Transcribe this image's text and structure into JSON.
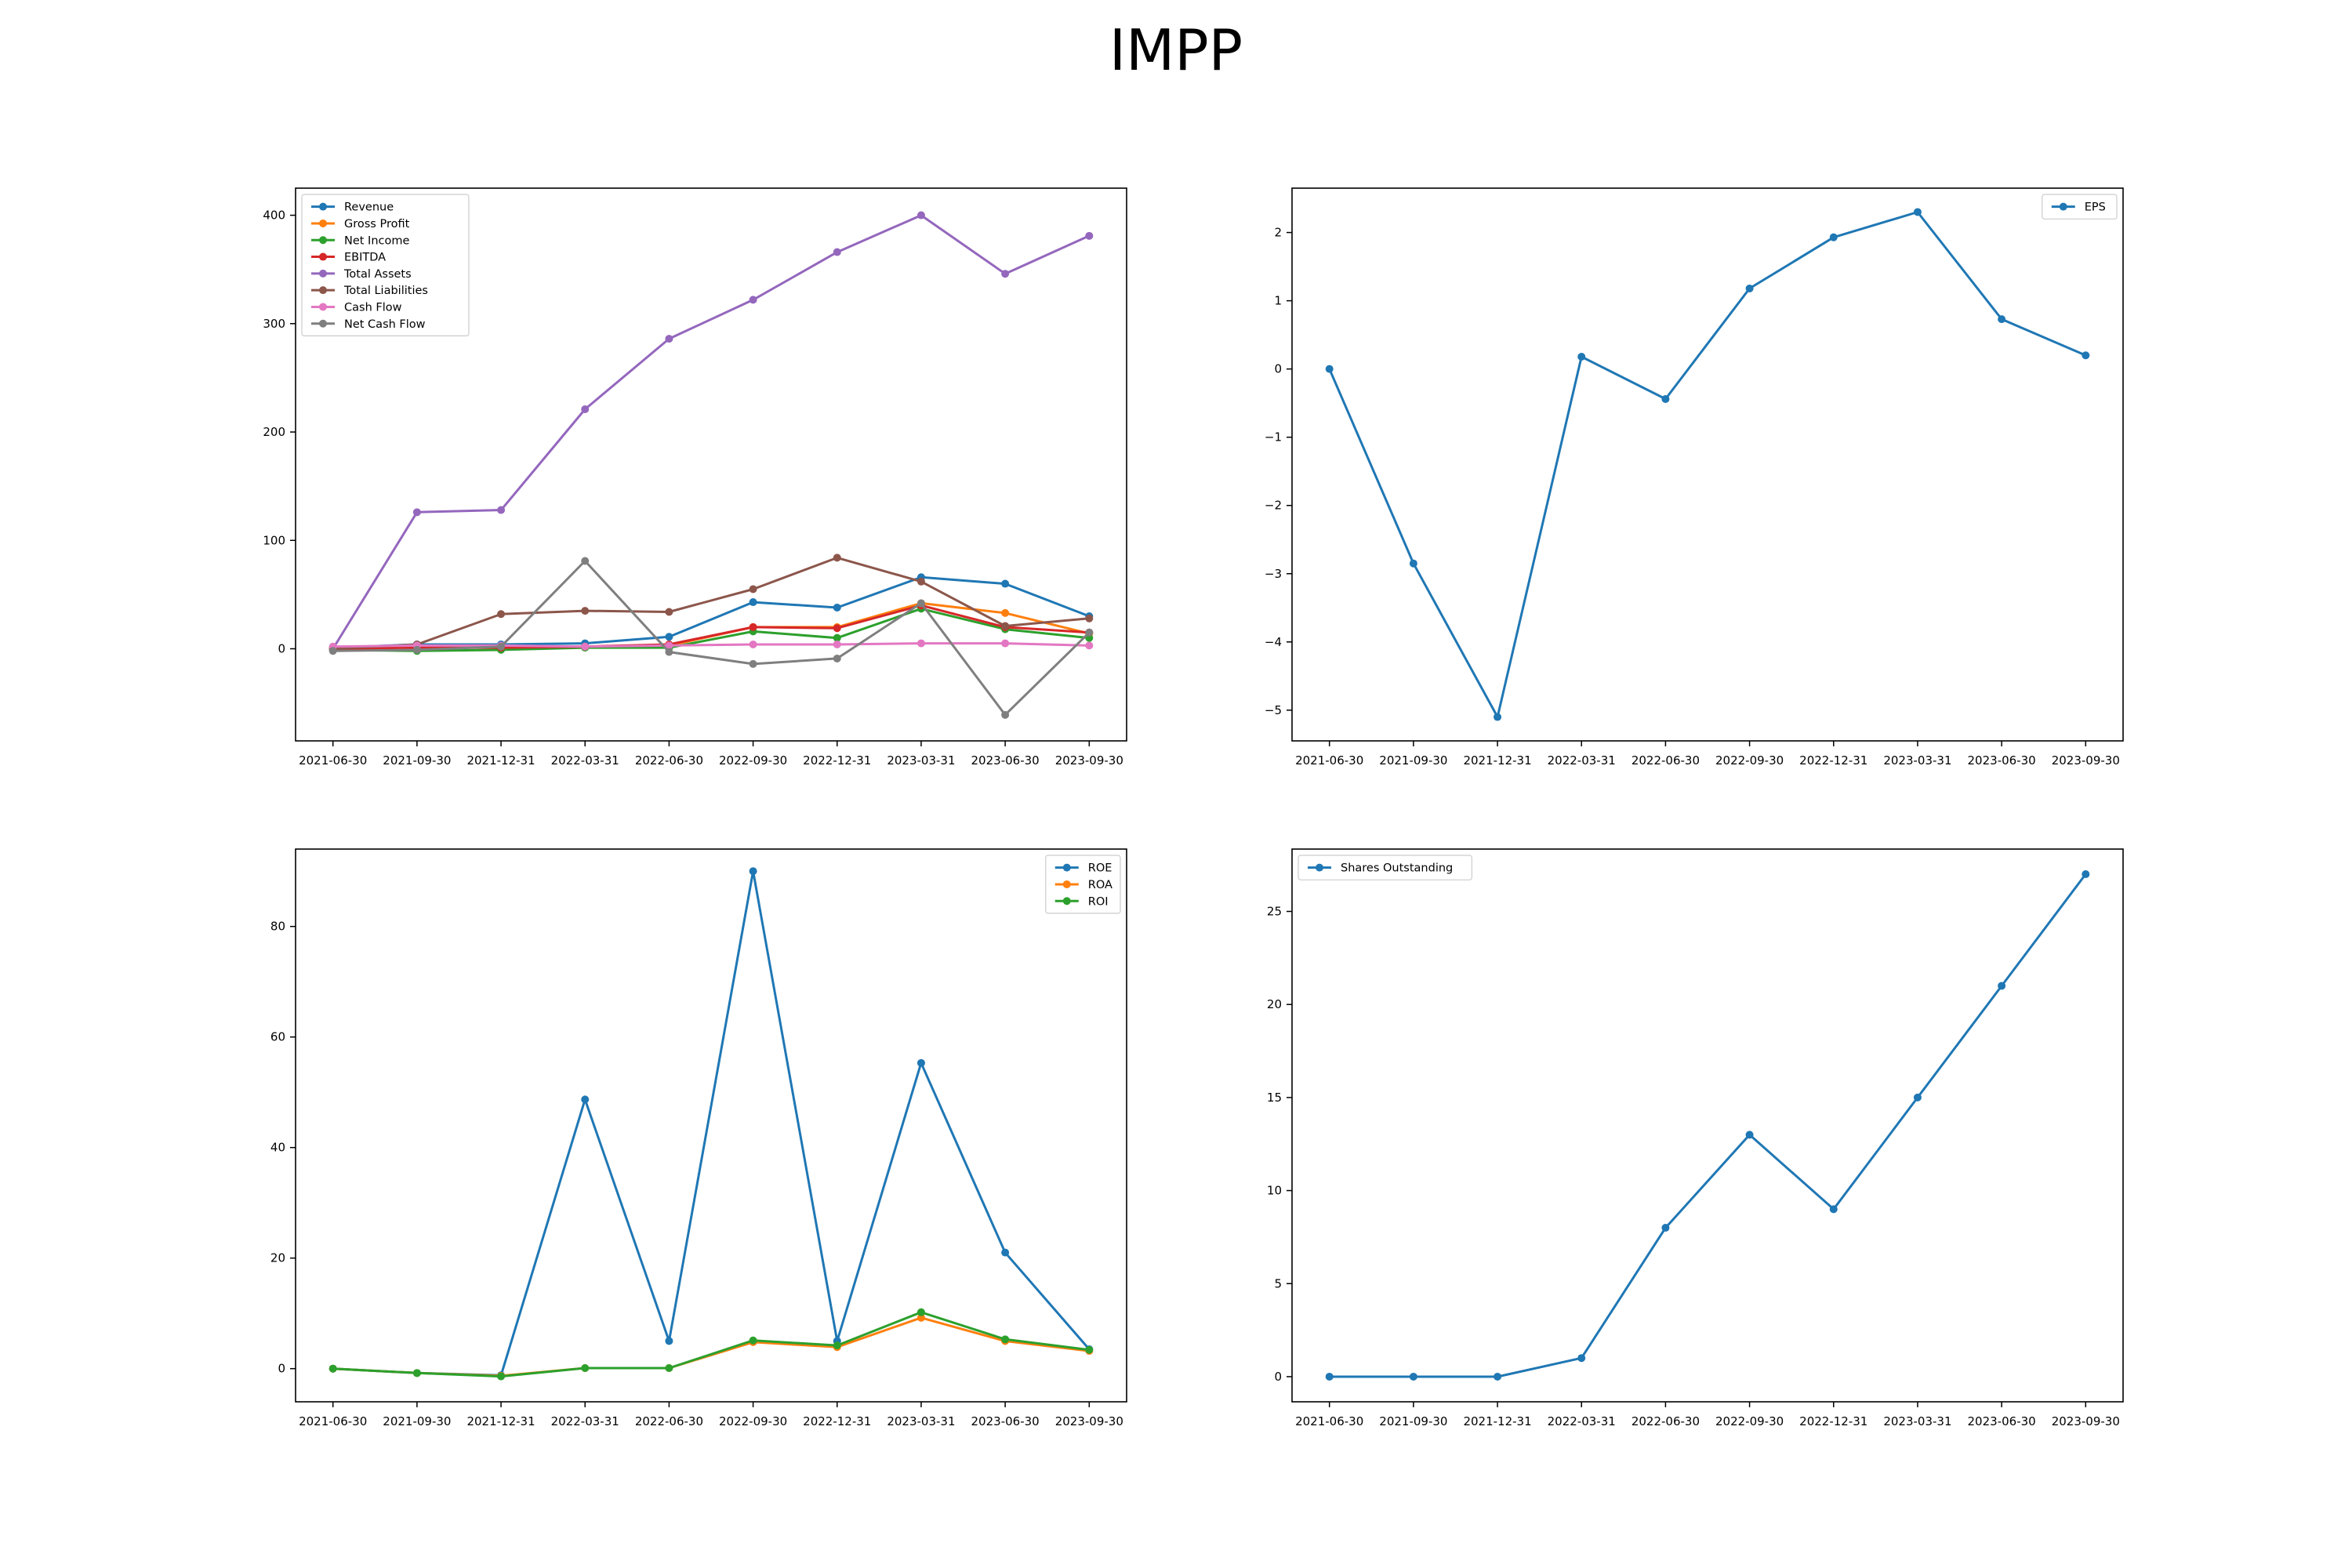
{
  "figure": {
    "title": "IMPP"
  },
  "colors": {
    "blue": "#1f77b4",
    "orange": "#ff7f0e",
    "green": "#2ca02c",
    "red": "#d62728",
    "purple": "#9467bd",
    "brown": "#8c564b",
    "pink": "#e377c2",
    "gray": "#7f7f7f"
  },
  "chart_data": [
    {
      "type": "line",
      "x": [
        "2021-06-30",
        "2021-09-30",
        "2021-12-31",
        "2022-03-31",
        "2022-06-30",
        "2022-09-30",
        "2022-12-31",
        "2023-03-31",
        "2023-06-30",
        "2023-09-30"
      ],
      "ylim": [
        -85,
        425
      ],
      "yticks": [
        0,
        100,
        200,
        300,
        400
      ],
      "legend": "top-left",
      "grid": false,
      "series": [
        {
          "name": "Revenue",
          "color": "#1f77b4",
          "values": [
            1,
            4,
            4,
            5,
            11,
            43,
            38,
            66,
            60,
            30
          ]
        },
        {
          "name": "Gross Profit",
          "color": "#ff7f0e",
          "values": [
            1,
            1,
            1,
            2,
            3,
            20,
            20,
            42,
            33,
            14
          ]
        },
        {
          "name": "Net Income",
          "color": "#2ca02c",
          "values": [
            -1,
            -2,
            -1,
            1,
            1,
            16,
            10,
            37,
            18,
            10
          ]
        },
        {
          "name": "EBITDA",
          "color": "#d62728",
          "values": [
            0,
            1,
            1,
            2,
            4,
            20,
            19,
            40,
            20,
            15
          ]
        },
        {
          "name": "Total Assets",
          "color": "#9467bd",
          "values": [
            0,
            126,
            128,
            221,
            286,
            322,
            366,
            400,
            346,
            381
          ]
        },
        {
          "name": "Total Liabilities",
          "color": "#8c564b",
          "values": [
            0,
            4,
            32,
            35,
            34,
            55,
            84,
            62,
            21,
            28
          ]
        },
        {
          "name": "Cash Flow",
          "color": "#e377c2",
          "values": [
            2,
            3,
            3,
            2,
            3,
            4,
            4,
            5,
            5,
            3
          ]
        },
        {
          "name": "Net Cash Flow",
          "color": "#7f7f7f",
          "values": [
            -2,
            -1,
            2,
            81,
            -3,
            -14,
            -9,
            42,
            -61,
            15
          ]
        }
      ]
    },
    {
      "type": "line",
      "x": [
        "2021-06-30",
        "2021-09-30",
        "2021-12-31",
        "2022-03-31",
        "2022-06-30",
        "2022-09-30",
        "2022-12-31",
        "2023-03-31",
        "2023-06-30",
        "2023-09-30"
      ],
      "ylim": [
        -5.45,
        2.65
      ],
      "yticks": [
        -5,
        -4,
        -3,
        -2,
        -1,
        0,
        1,
        2
      ],
      "legend": "top-right",
      "grid": false,
      "series": [
        {
          "name": "EPS",
          "color": "#1f77b4",
          "values": [
            0.0,
            -2.85,
            -5.1,
            0.18,
            -0.44,
            1.18,
            1.93,
            2.3,
            0.73,
            0.2
          ]
        }
      ]
    },
    {
      "type": "line",
      "x": [
        "2021-06-30",
        "2021-09-30",
        "2021-12-31",
        "2022-03-31",
        "2022-06-30",
        "2022-09-30",
        "2022-12-31",
        "2023-03-31",
        "2023-06-30",
        "2023-09-30"
      ],
      "ylim": [
        -6,
        94
      ],
      "yticks": [
        0,
        20,
        40,
        60,
        80
      ],
      "legend": "top-right",
      "grid": false,
      "series": [
        {
          "name": "ROE",
          "color": "#1f77b4",
          "values": [
            0,
            -0.8,
            -1.2,
            48.7,
            5.0,
            90.0,
            5.0,
            55.3,
            21.0,
            3.5
          ]
        },
        {
          "name": "ROA",
          "color": "#ff7f0e",
          "values": [
            0,
            -0.8,
            -1.3,
            0.1,
            0.1,
            4.8,
            3.9,
            9.2,
            5.0,
            3.2
          ]
        },
        {
          "name": "ROI",
          "color": "#2ca02c",
          "values": [
            0,
            -0.8,
            -1.4,
            0.1,
            0.1,
            5.1,
            4.2,
            10.2,
            5.3,
            3.4
          ]
        }
      ]
    },
    {
      "type": "line",
      "x": [
        "2021-06-30",
        "2021-09-30",
        "2021-12-31",
        "2022-03-31",
        "2022-06-30",
        "2022-09-30",
        "2022-12-31",
        "2023-03-31",
        "2023-06-30",
        "2023-09-30"
      ],
      "ylim": [
        -1.35,
        28.35
      ],
      "yticks": [
        0,
        5,
        10,
        15,
        20,
        25
      ],
      "legend": "top-left",
      "grid": false,
      "series": [
        {
          "name": "Shares Outstanding",
          "color": "#1f77b4",
          "values": [
            0,
            0,
            0,
            1,
            8,
            13,
            9,
            15,
            21,
            27
          ]
        }
      ]
    }
  ]
}
